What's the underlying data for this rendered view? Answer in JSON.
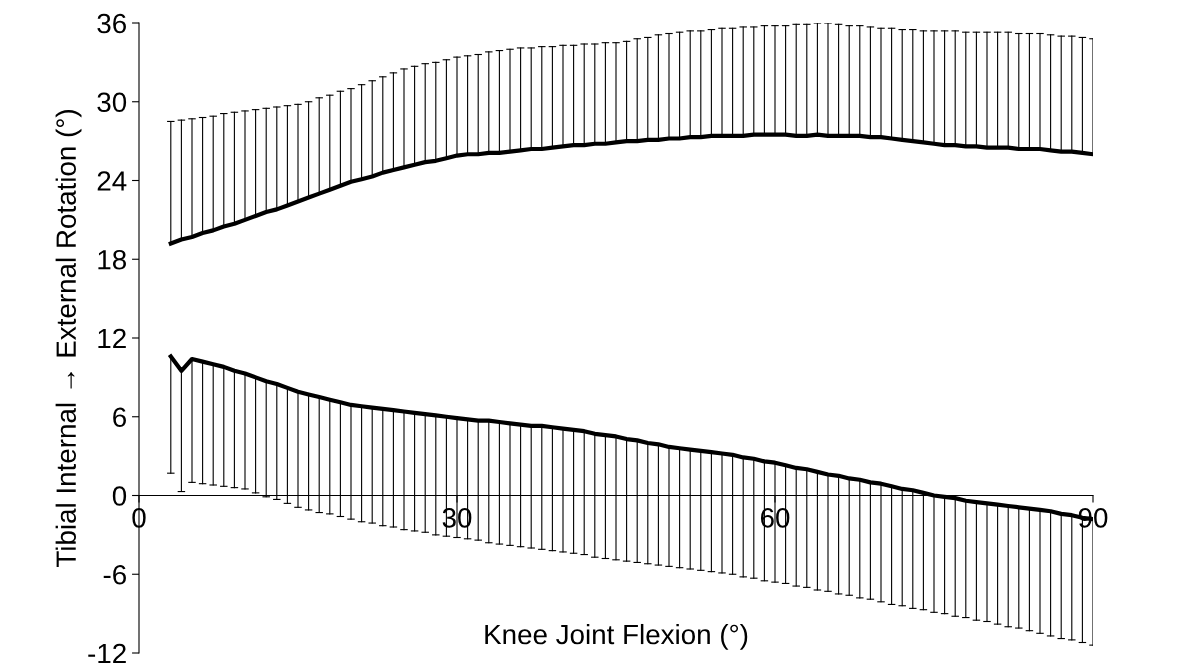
{
  "chart_data": {
    "type": "line",
    "xlabel": "Knee Joint Flexion (°)",
    "ylabel": "Tibial Internal → External Rotation (°)",
    "x": [
      3,
      4,
      5,
      6,
      7,
      8,
      9,
      10,
      11,
      12,
      13,
      14,
      15,
      16,
      17,
      18,
      19,
      20,
      21,
      22,
      23,
      24,
      25,
      26,
      27,
      28,
      29,
      30,
      31,
      32,
      33,
      34,
      35,
      36,
      37,
      38,
      39,
      40,
      41,
      42,
      43,
      44,
      45,
      46,
      47,
      48,
      49,
      50,
      51,
      52,
      53,
      54,
      55,
      56,
      57,
      58,
      59,
      60,
      61,
      62,
      63,
      64,
      65,
      66,
      67,
      68,
      69,
      70,
      71,
      72,
      73,
      74,
      75,
      76,
      77,
      78,
      79,
      80,
      81,
      82,
      83,
      84,
      85,
      86,
      87,
      88,
      89,
      90
    ],
    "xlim": [
      0,
      90
    ],
    "xticks": [
      0,
      30,
      60,
      90
    ],
    "ylim": [
      -12,
      36
    ],
    "yticks": [
      -12,
      -6,
      0,
      6,
      12,
      18,
      24,
      30,
      36
    ],
    "grid": false,
    "legend": false,
    "marker": "none",
    "line_style": "solid",
    "series": [
      {
        "color": "#000000",
        "values": [
          19.2,
          19.5,
          19.7,
          20.0,
          20.2,
          20.5,
          20.7,
          21.0,
          21.3,
          21.6,
          21.8,
          22.1,
          22.4,
          22.7,
          23.0,
          23.3,
          23.6,
          23.9,
          24.1,
          24.3,
          24.6,
          24.8,
          25.0,
          25.2,
          25.4,
          25.5,
          25.7,
          25.9,
          26.0,
          26.0,
          26.1,
          26.1,
          26.2,
          26.3,
          26.4,
          26.4,
          26.5,
          26.6,
          26.7,
          26.7,
          26.8,
          26.8,
          26.9,
          27.0,
          27.0,
          27.1,
          27.1,
          27.2,
          27.2,
          27.3,
          27.3,
          27.4,
          27.4,
          27.4,
          27.4,
          27.5,
          27.5,
          27.5,
          27.5,
          27.4,
          27.4,
          27.5,
          27.4,
          27.4,
          27.4,
          27.4,
          27.3,
          27.3,
          27.2,
          27.1,
          27.0,
          26.9,
          26.8,
          26.7,
          26.7,
          26.6,
          26.6,
          26.5,
          26.5,
          26.5,
          26.4,
          26.4,
          26.4,
          26.3,
          26.2,
          26.2,
          26.1,
          26.0
        ],
        "errors": [
          [
            19.2,
            28.5
          ],
          [
            19.5,
            28.6
          ],
          [
            19.7,
            28.7
          ],
          [
            20.0,
            28.8
          ],
          [
            20.2,
            28.9
          ],
          [
            20.5,
            29.1
          ],
          [
            20.7,
            29.2
          ],
          [
            21.0,
            29.3
          ],
          [
            21.3,
            29.4
          ],
          [
            21.6,
            29.5
          ],
          [
            21.8,
            29.6
          ],
          [
            22.1,
            29.7
          ],
          [
            22.4,
            29.8
          ],
          [
            22.7,
            30.0
          ],
          [
            23.0,
            30.3
          ],
          [
            23.3,
            30.5
          ],
          [
            23.6,
            30.8
          ],
          [
            23.9,
            31.0
          ],
          [
            24.1,
            31.3
          ],
          [
            24.3,
            31.6
          ],
          [
            24.6,
            31.9
          ],
          [
            24.8,
            32.2
          ],
          [
            25.0,
            32.5
          ],
          [
            25.2,
            32.7
          ],
          [
            25.4,
            32.9
          ],
          [
            25.5,
            33.0
          ],
          [
            25.7,
            33.2
          ],
          [
            25.9,
            33.4
          ],
          [
            26.0,
            33.5
          ],
          [
            26.0,
            33.6
          ],
          [
            26.1,
            33.8
          ],
          [
            26.1,
            33.9
          ],
          [
            26.2,
            34.0
          ],
          [
            26.3,
            34.1
          ],
          [
            26.4,
            34.1
          ],
          [
            26.4,
            34.2
          ],
          [
            26.5,
            34.2
          ],
          [
            26.6,
            34.3
          ],
          [
            26.7,
            34.3
          ],
          [
            26.7,
            34.4
          ],
          [
            26.8,
            34.4
          ],
          [
            26.8,
            34.5
          ],
          [
            26.9,
            34.5
          ],
          [
            27.0,
            34.6
          ],
          [
            27.0,
            34.8
          ],
          [
            27.1,
            34.9
          ],
          [
            27.1,
            35.1
          ],
          [
            27.2,
            35.2
          ],
          [
            27.2,
            35.3
          ],
          [
            27.3,
            35.4
          ],
          [
            27.3,
            35.4
          ],
          [
            27.4,
            35.5
          ],
          [
            27.4,
            35.6
          ],
          [
            27.4,
            35.6
          ],
          [
            27.4,
            35.7
          ],
          [
            27.5,
            35.7
          ],
          [
            27.5,
            35.8
          ],
          [
            27.5,
            35.8
          ],
          [
            27.5,
            35.8
          ],
          [
            27.4,
            35.9
          ],
          [
            27.4,
            35.9
          ],
          [
            27.5,
            36.0
          ],
          [
            27.4,
            36.0
          ],
          [
            27.4,
            35.9
          ],
          [
            27.4,
            35.8
          ],
          [
            27.4,
            35.8
          ],
          [
            27.3,
            35.7
          ],
          [
            27.3,
            35.6
          ],
          [
            27.2,
            35.6
          ],
          [
            27.1,
            35.5
          ],
          [
            27.0,
            35.5
          ],
          [
            26.9,
            35.4
          ],
          [
            26.8,
            35.4
          ],
          [
            26.7,
            35.4
          ],
          [
            26.7,
            35.4
          ],
          [
            26.6,
            35.3
          ],
          [
            26.6,
            35.3
          ],
          [
            26.5,
            35.3
          ],
          [
            26.5,
            35.3
          ],
          [
            26.5,
            35.3
          ],
          [
            26.4,
            35.2
          ],
          [
            26.4,
            35.2
          ],
          [
            26.4,
            35.2
          ],
          [
            26.3,
            35.1
          ],
          [
            26.2,
            35.0
          ],
          [
            26.2,
            35.0
          ],
          [
            26.1,
            34.9
          ],
          [
            26.0,
            34.8
          ]
        ]
      },
      {
        "color": "#000000",
        "values": [
          10.6,
          9.5,
          10.4,
          10.2,
          10.0,
          9.8,
          9.5,
          9.3,
          9.0,
          8.7,
          8.5,
          8.2,
          7.9,
          7.7,
          7.5,
          7.3,
          7.1,
          6.9,
          6.8,
          6.7,
          6.6,
          6.5,
          6.4,
          6.3,
          6.2,
          6.1,
          6.0,
          5.9,
          5.8,
          5.7,
          5.7,
          5.6,
          5.5,
          5.4,
          5.3,
          5.3,
          5.2,
          5.1,
          5.0,
          4.9,
          4.7,
          4.6,
          4.5,
          4.3,
          4.2,
          4.0,
          3.9,
          3.7,
          3.6,
          3.5,
          3.4,
          3.3,
          3.2,
          3.1,
          2.9,
          2.8,
          2.6,
          2.5,
          2.3,
          2.1,
          2.0,
          1.8,
          1.6,
          1.5,
          1.3,
          1.2,
          1.0,
          0.9,
          0.7,
          0.5,
          0.4,
          0.2,
          0.0,
          -0.1,
          -0.2,
          -0.4,
          -0.5,
          -0.6,
          -0.7,
          -0.8,
          -0.9,
          -1.0,
          -1.1,
          -1.2,
          -1.4,
          -1.5,
          -1.7,
          -1.8
        ],
        "errors": [
          [
            1.7,
            10.6
          ],
          [
            0.3,
            9.5
          ],
          [
            1.0,
            10.4
          ],
          [
            0.9,
            10.2
          ],
          [
            0.8,
            10.0
          ],
          [
            0.7,
            9.8
          ],
          [
            0.6,
            9.5
          ],
          [
            0.5,
            9.3
          ],
          [
            0.2,
            9.0
          ],
          [
            -0.1,
            8.7
          ],
          [
            -0.3,
            8.5
          ],
          [
            -0.6,
            8.2
          ],
          [
            -0.9,
            7.9
          ],
          [
            -1.1,
            7.7
          ],
          [
            -1.3,
            7.5
          ],
          [
            -1.4,
            7.3
          ],
          [
            -1.6,
            7.1
          ],
          [
            -1.8,
            6.9
          ],
          [
            -2.0,
            6.8
          ],
          [
            -2.1,
            6.7
          ],
          [
            -2.3,
            6.6
          ],
          [
            -2.4,
            6.5
          ],
          [
            -2.6,
            6.4
          ],
          [
            -2.7,
            6.3
          ],
          [
            -2.8,
            6.2
          ],
          [
            -3.0,
            6.1
          ],
          [
            -3.1,
            6.0
          ],
          [
            -3.2,
            5.9
          ],
          [
            -3.3,
            5.8
          ],
          [
            -3.4,
            5.7
          ],
          [
            -3.6,
            5.7
          ],
          [
            -3.7,
            5.6
          ],
          [
            -3.8,
            5.5
          ],
          [
            -3.9,
            5.4
          ],
          [
            -4.0,
            5.3
          ],
          [
            -4.1,
            5.3
          ],
          [
            -4.2,
            5.2
          ],
          [
            -4.3,
            5.1
          ],
          [
            -4.4,
            5.0
          ],
          [
            -4.5,
            4.9
          ],
          [
            -4.7,
            4.7
          ],
          [
            -4.8,
            4.6
          ],
          [
            -4.9,
            4.5
          ],
          [
            -5.0,
            4.3
          ],
          [
            -5.1,
            4.2
          ],
          [
            -5.2,
            4.0
          ],
          [
            -5.3,
            3.9
          ],
          [
            -5.4,
            3.7
          ],
          [
            -5.5,
            3.6
          ],
          [
            -5.6,
            3.5
          ],
          [
            -5.7,
            3.4
          ],
          [
            -5.8,
            3.3
          ],
          [
            -5.9,
            3.2
          ],
          [
            -6.0,
            3.1
          ],
          [
            -6.2,
            2.9
          ],
          [
            -6.3,
            2.8
          ],
          [
            -6.5,
            2.6
          ],
          [
            -6.6,
            2.5
          ],
          [
            -6.7,
            2.3
          ],
          [
            -6.9,
            2.1
          ],
          [
            -7.0,
            2.0
          ],
          [
            -7.2,
            1.8
          ],
          [
            -7.3,
            1.6
          ],
          [
            -7.5,
            1.5
          ],
          [
            -7.6,
            1.3
          ],
          [
            -7.8,
            1.2
          ],
          [
            -7.9,
            1.0
          ],
          [
            -8.1,
            0.9
          ],
          [
            -8.3,
            0.7
          ],
          [
            -8.4,
            0.5
          ],
          [
            -8.6,
            0.4
          ],
          [
            -8.7,
            0.2
          ],
          [
            -8.9,
            0.0
          ],
          [
            -9.0,
            -0.1
          ],
          [
            -9.2,
            -0.2
          ],
          [
            -9.3,
            -0.4
          ],
          [
            -9.5,
            -0.5
          ],
          [
            -9.6,
            -0.6
          ],
          [
            -9.8,
            -0.7
          ],
          [
            -10.0,
            -0.8
          ],
          [
            -10.1,
            -0.9
          ],
          [
            -10.3,
            -1.0
          ],
          [
            -10.5,
            -1.1
          ],
          [
            -10.7,
            -1.2
          ],
          [
            -10.9,
            -1.4
          ],
          [
            -11.0,
            -1.5
          ],
          [
            -11.2,
            -1.7
          ],
          [
            -11.4,
            -1.8
          ]
        ]
      }
    ]
  }
}
